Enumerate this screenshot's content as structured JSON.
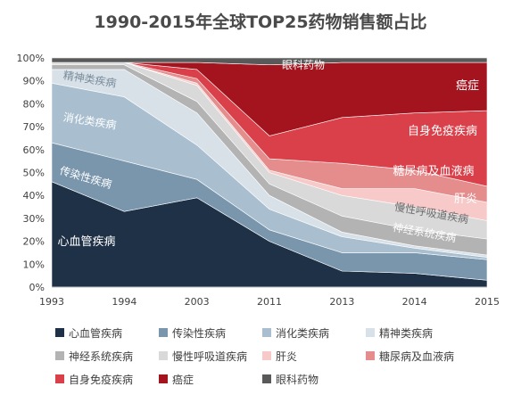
{
  "chart_data": {
    "type": "area",
    "stacked": "percent",
    "title": "1990-2015年全球TOP25药物销售额占比",
    "x": [
      "1993",
      "1994",
      "2003",
      "2011",
      "2013",
      "2014",
      "2015"
    ],
    "ylim": [
      0,
      100
    ],
    "yticks": [
      "0%",
      "10%",
      "20%",
      "30%",
      "40%",
      "50%",
      "60%",
      "70%",
      "80%",
      "90%",
      "100%"
    ],
    "grid": true,
    "legend_position": "bottom",
    "series": [
      {
        "name": "心血管疾病",
        "color": "#1f3147",
        "values": [
          46,
          33,
          39,
          20,
          7,
          6,
          3
        ]
      },
      {
        "name": "传染性疾病",
        "color": "#7a96ad",
        "values": [
          17,
          22,
          8,
          5,
          8,
          9,
          9
        ]
      },
      {
        "name": "消化类疾病",
        "color": "#a9bfcf",
        "values": [
          26,
          28,
          15,
          9,
          7,
          2,
          1
        ]
      },
      {
        "name": "精神类疾病",
        "color": "#d8e1e8",
        "values": [
          6,
          12,
          14,
          6,
          2,
          1,
          1
        ]
      },
      {
        "name": "神经系统疾病",
        "color": "#b3b3b3",
        "values": [
          2,
          2,
          5,
          5,
          7,
          7,
          7
        ]
      },
      {
        "name": "慢性呼吸道疾病",
        "color": "#d9d9d9",
        "values": [
          1,
          1,
          7,
          5,
          9,
          10,
          8
        ]
      },
      {
        "name": "肝炎",
        "color": "#f7c9c9",
        "values": [
          0,
          0,
          1,
          1,
          3,
          8,
          8
        ]
      },
      {
        "name": "糖尿病及血液病",
        "color": "#e58c8c",
        "values": [
          0,
          0,
          2,
          5,
          11,
          8,
          7
        ]
      },
      {
        "name": "自身免疫疾病",
        "color": "#d9404a",
        "values": [
          0,
          0,
          4,
          10,
          20,
          25,
          33
        ]
      },
      {
        "name": "癌症",
        "color": "#a3141e",
        "values": [
          0,
          0,
          3,
          31,
          24,
          22,
          21
        ]
      },
      {
        "name": "眼科药物",
        "color": "#595959",
        "values": [
          2,
          2,
          2,
          3,
          2,
          2,
          2
        ]
      }
    ],
    "annotations": [
      {
        "text": "眼科药物",
        "series": "眼科药物"
      },
      {
        "text": "癌症",
        "series": "癌症"
      },
      {
        "text": "自身免疫疾病",
        "series": "自身免疫疾病"
      },
      {
        "text": "糖尿病及血液病",
        "series": "糖尿病及血液病"
      },
      {
        "text": "肝炎",
        "series": "肝炎"
      },
      {
        "text": "慢性呼吸道疾病",
        "series": "慢性呼吸道疾病"
      },
      {
        "text": "神经系统疾病",
        "series": "神经系统疾病"
      },
      {
        "text": "精神类疾病",
        "series": "精神类疾病"
      },
      {
        "text": "消化类疾病",
        "series": "消化类疾病"
      },
      {
        "text": "传染性疾病",
        "series": "传染性疾病"
      },
      {
        "text": "心血管疾病",
        "series": "心血管疾病"
      }
    ]
  }
}
